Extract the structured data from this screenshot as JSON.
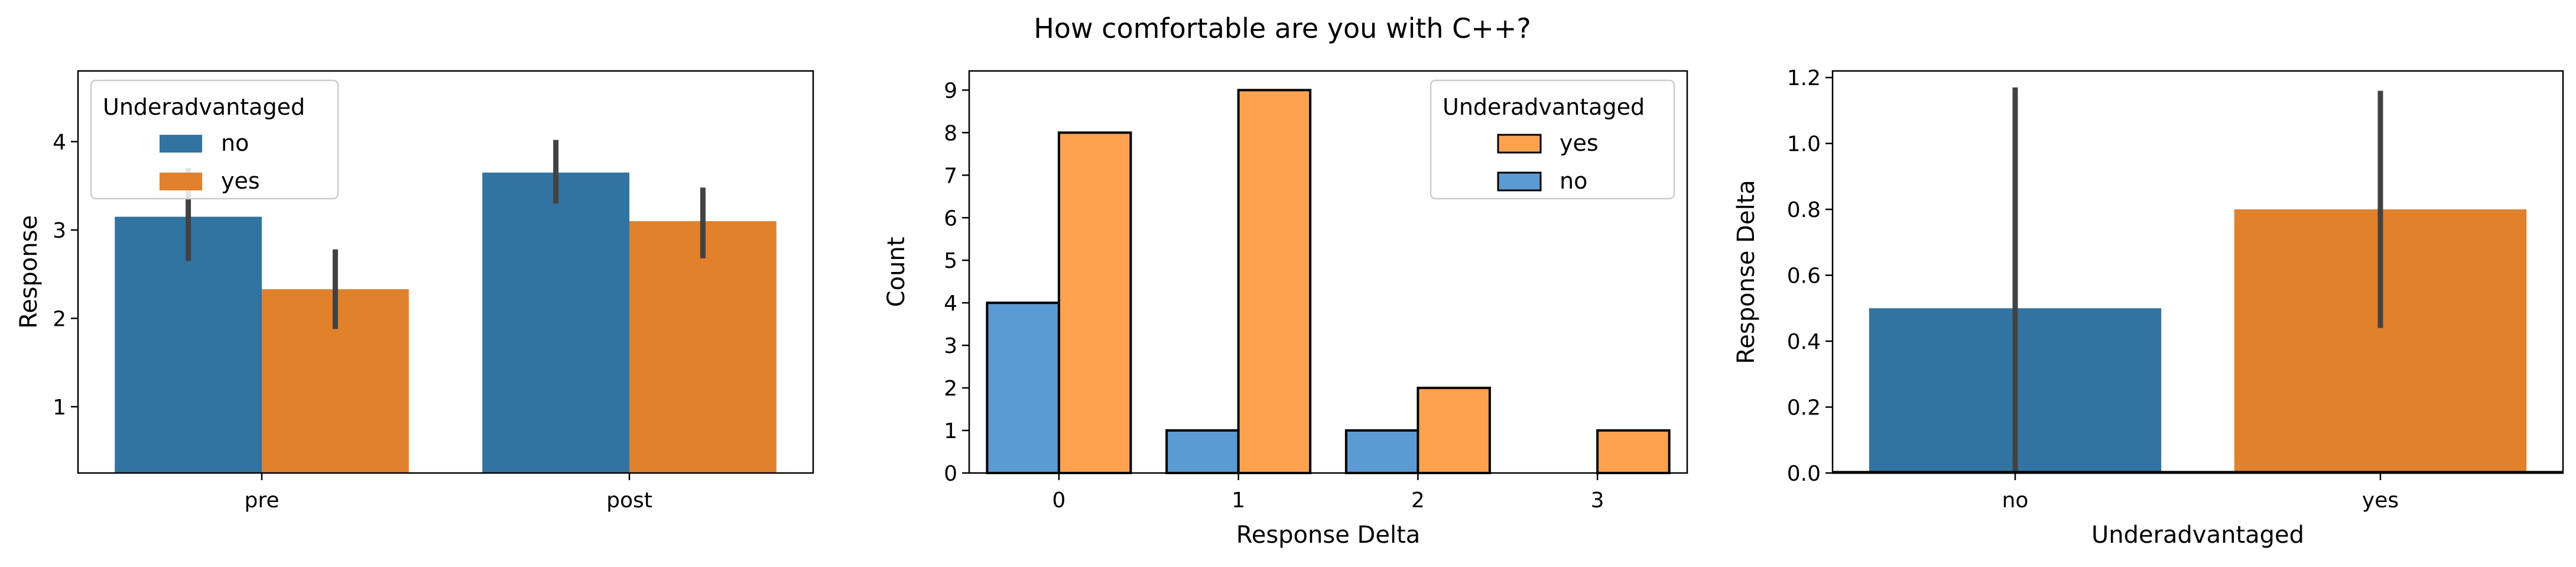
{
  "title": "How comfortable are you with C++?",
  "colors": {
    "no": "#3274a1",
    "yes": "#e1812c",
    "no_hist": "#5a9bd3",
    "yes_hist": "#ffa24d",
    "errbar": "#424242"
  },
  "chart_data": [
    {
      "type": "bar",
      "categories": [
        "pre",
        "post"
      ],
      "series": [
        {
          "name": "no",
          "values": [
            3.15,
            3.65
          ],
          "ci": [
            [
              2.65,
              3.7
            ],
            [
              3.3,
              4.02
            ]
          ]
        },
        {
          "name": "yes",
          "values": [
            2.33,
            3.1
          ],
          "ci": [
            [
              1.88,
              2.78
            ],
            [
              2.68,
              3.48
            ]
          ]
        }
      ],
      "xlabel": "",
      "ylabel": "Response",
      "ylim": [
        0.25,
        4.8
      ],
      "yticks": [
        1,
        2,
        3,
        4
      ],
      "legend": {
        "title": "Underadvantaged",
        "entries": [
          "no",
          "yes"
        ],
        "placement": "upper left"
      }
    },
    {
      "type": "bar",
      "categories": [
        "0",
        "1",
        "2",
        "3"
      ],
      "series": [
        {
          "name": "no",
          "values": [
            4,
            1,
            1,
            0
          ]
        },
        {
          "name": "yes",
          "values": [
            8,
            9,
            2,
            1
          ]
        }
      ],
      "xlabel": "Response Delta",
      "ylabel": "Count",
      "ylim": [
        0,
        9.45
      ],
      "yticks": [
        0,
        1,
        2,
        3,
        4,
        5,
        6,
        7,
        8,
        9
      ],
      "legend": {
        "title": "Underadvantaged",
        "entries": [
          "yes",
          "no"
        ],
        "placement": "upper right"
      }
    },
    {
      "type": "bar",
      "categories": [
        "no",
        "yes"
      ],
      "values": [
        0.5,
        0.8
      ],
      "ci": [
        [
          0.0,
          1.17
        ],
        [
          0.44,
          1.16
        ]
      ],
      "xlabel": "Underadvantaged",
      "ylabel": "Response Delta",
      "ylim": [
        0,
        1.22
      ],
      "yticks": [
        "0.0",
        "0.2",
        "0.4",
        "0.6",
        "0.8",
        "1.0",
        "1.2"
      ]
    }
  ]
}
